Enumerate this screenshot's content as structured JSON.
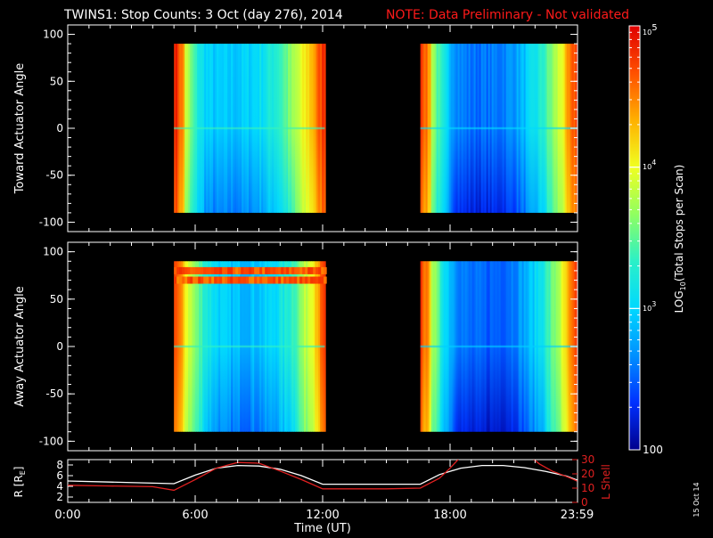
{
  "header": {
    "title": "TWINS1: Stop Counts:  3 Oct (day 276), 2014",
    "note": "NOTE: Data Preliminary - Not validated"
  },
  "footer": {
    "date_stamp": "15 Oct 14"
  },
  "colors": {
    "background": "#000000",
    "axis": "#ffffff",
    "note": "#ff1a1a",
    "l_shell": "#e02020",
    "r_line": "#ffffff",
    "colormap": [
      "#00008c",
      "#0030ff",
      "#0090ff",
      "#00d8ff",
      "#2af0c8",
      "#90ff60",
      "#f0ff20",
      "#ffb000",
      "#ff5000",
      "#e00000"
    ]
  },
  "chart_data": [
    {
      "type": "heatmap",
      "name": "toward",
      "ylabel": "Toward Actuator Angle",
      "xlabel": "",
      "xlim": [
        0,
        24
      ],
      "ylim": [
        -110,
        110
      ],
      "y_ticks": [
        100,
        50,
        0,
        -50,
        -100
      ],
      "angle_range": [
        -90,
        90
      ],
      "data_segments": [
        {
          "start_hr": 5.0,
          "end_hr": 12.1,
          "edge_level": 0.95,
          "center_level": 0.28,
          "profile_min_at": 0.3
        },
        {
          "start_hr": 16.6,
          "end_hr": 23.98,
          "edge_level": 0.92,
          "center_level": 0.16,
          "profile_min_at": 0.35
        }
      ]
    },
    {
      "type": "heatmap",
      "name": "away",
      "ylabel": "Away Actuator Angle",
      "xlabel": "",
      "xlim": [
        0,
        24
      ],
      "ylim": [
        -110,
        110
      ],
      "y_ticks": [
        100,
        50,
        0,
        -50,
        -100
      ],
      "angle_range": [
        -90,
        90
      ],
      "data_segments": [
        {
          "start_hr": 5.0,
          "end_hr": 12.1,
          "edge_level": 0.9,
          "center_level": 0.27,
          "profile_min_at": 0.45,
          "band_angles": [
            80,
            70
          ]
        },
        {
          "start_hr": 16.6,
          "end_hr": 23.98,
          "edge_level": 0.9,
          "center_level": 0.14,
          "profile_min_at": 0.38
        }
      ]
    },
    {
      "type": "line",
      "name": "orbit",
      "ylabel": "R [R",
      "ylabel_sub": "E",
      "ylabel_end": "]",
      "y2label": "L Shell",
      "xlabel": "Time (UT)",
      "xlim": [
        0,
        24
      ],
      "x_ticks": [
        0,
        6,
        12,
        18,
        23.98
      ],
      "x_tick_labels": [
        "0:00",
        "6:00",
        "12:00",
        "18:00",
        "23:59"
      ],
      "ylim": [
        1,
        9
      ],
      "y_ticks": [
        2,
        4,
        6,
        8
      ],
      "y2lim": [
        0,
        30
      ],
      "y2_ticks": [
        0,
        10,
        20,
        30
      ],
      "series": [
        {
          "axis": "left",
          "color": "#ffffff",
          "x": [
            0,
            2,
            4,
            5,
            6,
            7,
            8,
            9,
            10,
            11,
            12,
            13,
            15,
            16.6,
            17.5,
            18.5,
            19.5,
            20.5,
            21.5,
            22.5,
            23.5,
            23.98
          ],
          "y": [
            5.0,
            4.8,
            4.6,
            4.5,
            6.1,
            7.4,
            7.9,
            7.8,
            7.2,
            6.0,
            4.4,
            4.4,
            4.4,
            4.4,
            6.2,
            7.4,
            7.9,
            7.9,
            7.5,
            6.8,
            5.9,
            5.2
          ]
        },
        {
          "axis": "right",
          "color": "#e02020",
          "x": [
            0,
            2,
            4,
            5,
            6,
            7,
            8,
            9,
            10,
            11,
            12,
            13,
            15,
            16.6,
            17.5,
            18,
            18.5,
            21.8,
            22.2,
            22.8,
            23.5,
            23.98
          ],
          "y": [
            12,
            11.5,
            11,
            8.5,
            16,
            24,
            28,
            27.5,
            22,
            16,
            9.5,
            9.5,
            9.5,
            10,
            17,
            24,
            32,
            32,
            27,
            22,
            18,
            15
          ]
        }
      ]
    }
  ],
  "colorbar": {
    "label_pre": "LOG",
    "label_sub": "10",
    "label_post": "(Total Stops per Scan)",
    "range_log": [
      2,
      5
    ],
    "tick_100": "100",
    "tick_1e3_base": "10",
    "tick_1e3_exp": "3",
    "tick_1e4_base": "10",
    "tick_1e4_exp": "4",
    "tick_1e5_base": "10",
    "tick_1e5_exp": "5"
  }
}
